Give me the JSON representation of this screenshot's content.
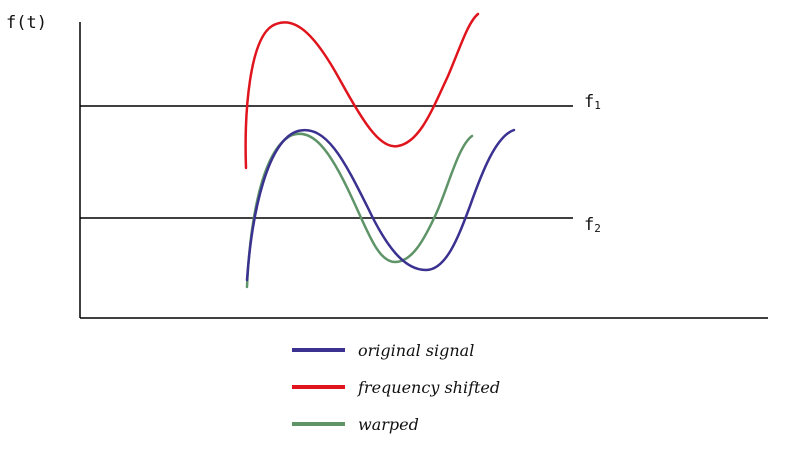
{
  "diagram": {
    "y_axis_label": "f(t)",
    "levels": [
      {
        "name": "f",
        "subscript": "1"
      },
      {
        "name": "f",
        "subscript": "2"
      }
    ],
    "legend": [
      {
        "label": "original signal",
        "color": "#3a3190"
      },
      {
        "label": "frequency shifted",
        "color": "#e0141c"
      },
      {
        "label": "warped",
        "color": "#5e9468"
      }
    ]
  }
}
